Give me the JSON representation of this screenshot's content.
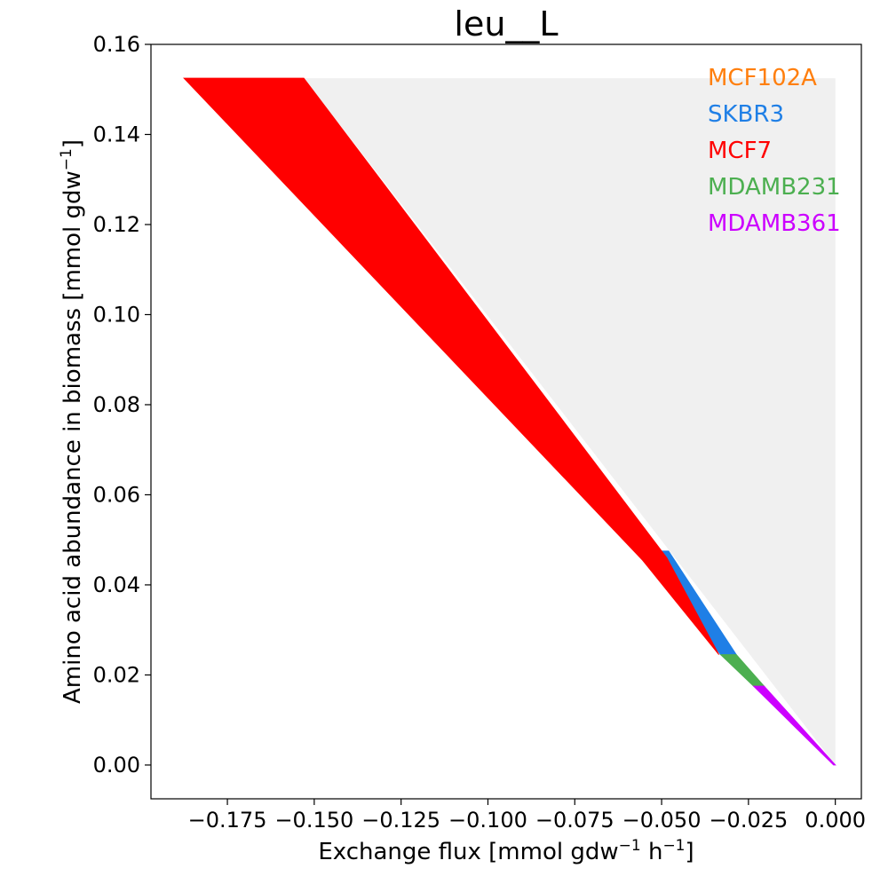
{
  "chart_data": {
    "type": "area",
    "title": "leu__L",
    "xlabel": {
      "text": "Exchange flux [mmol gdw",
      "sup1": "−1",
      "mid": " h",
      "sup2": "−1",
      "end": "]"
    },
    "ylabel": {
      "text": "Amino acid abundance in biomass [mmol gdw",
      "sup": "−1",
      "end": "]"
    },
    "xlim": [
      -0.197,
      0.0075
    ],
    "ylim": [
      -0.0075,
      0.16
    ],
    "x_ticks": [
      -0.175,
      -0.15,
      -0.125,
      -0.1,
      -0.075,
      -0.05,
      -0.025,
      0.0
    ],
    "x_tick_labels": [
      "−0.175",
      "−0.150",
      "−0.125",
      "−0.100",
      "−0.075",
      "−0.050",
      "−0.025",
      "0.000"
    ],
    "y_ticks": [
      0.0,
      0.02,
      0.04,
      0.06,
      0.08,
      0.1,
      0.12,
      0.14,
      0.16
    ],
    "y_tick_labels": [
      "0.00",
      "0.02",
      "0.04",
      "0.06",
      "0.08",
      "0.10",
      "0.12",
      "0.14",
      "0.16"
    ],
    "grid": false,
    "legend_position": "top-right",
    "background_region": {
      "color": "#f0f0f0",
      "polygon": [
        [
          -0.153,
          0.1525
        ],
        [
          0.0,
          0.1525
        ],
        [
          0.0,
          0.0
        ]
      ]
    },
    "series": [
      {
        "name": "MCF102A",
        "color": "#ff7f0e",
        "polygon": []
      },
      {
        "name": "SKBR3",
        "color": "#1f7fe6",
        "polygon": [
          [
            -0.0555,
            0.0475
          ],
          [
            -0.048,
            0.0475
          ],
          [
            -0.0285,
            0.0245
          ],
          [
            -0.033,
            0.0245
          ]
        ]
      },
      {
        "name": "MCF7",
        "color": "#ff0000",
        "polygon": [
          [
            -0.1875,
            0.1525
          ],
          [
            -0.153,
            0.1525
          ],
          [
            -0.0485,
            0.046
          ],
          [
            -0.0335,
            0.0245
          ],
          [
            -0.0555,
            0.0455
          ]
        ]
      },
      {
        "name": "MDAMB231",
        "color": "#4caf50",
        "polygon": [
          [
            -0.033,
            0.0245
          ],
          [
            -0.0285,
            0.0245
          ],
          [
            -0.0205,
            0.0175
          ],
          [
            -0.0235,
            0.0175
          ]
        ]
      },
      {
        "name": "MDAMB361",
        "color": "#cc00ff",
        "polygon": [
          [
            -0.0235,
            0.0175
          ],
          [
            -0.0205,
            0.0175
          ],
          [
            0.0,
            0.0
          ],
          [
            -0.0005,
            0.0
          ]
        ]
      }
    ]
  }
}
